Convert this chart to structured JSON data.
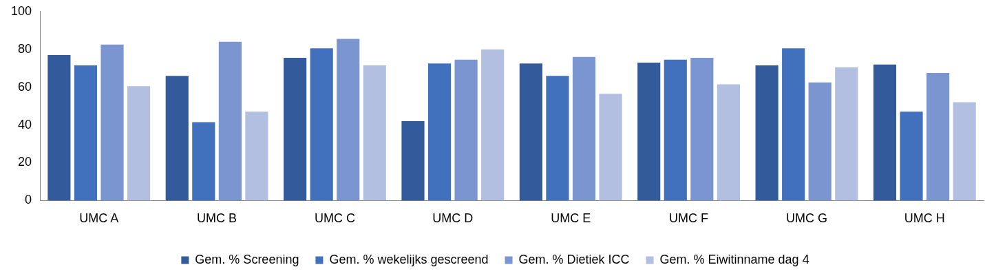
{
  "chart_data": {
    "type": "bar",
    "categories": [
      "UMC A",
      "UMC B",
      "UMC C",
      "UMC D",
      "UMC E",
      "UMC F",
      "UMC G",
      "UMC H"
    ],
    "series": [
      {
        "name": "Gem. % Screening",
        "color": "#335a9a",
        "values": [
          77,
          66,
          75.5,
          42,
          72.5,
          73,
          71.5,
          72
        ]
      },
      {
        "name": "Gem. % wekelijks gescreend",
        "color": "#4170bd",
        "values": [
          71.5,
          41.5,
          80.5,
          72.5,
          66,
          74.5,
          80.5,
          47
        ]
      },
      {
        "name": "Gem. % Dietiek ICC",
        "color": "#7b95d0",
        "values": [
          82.5,
          84,
          85.5,
          74.5,
          76,
          75.5,
          62.5,
          67.5
        ]
      },
      {
        "name": "Gem. % Eiwitinname dag 4",
        "color": "#b3bfe0",
        "values": [
          60.5,
          47,
          71.5,
          80,
          56.5,
          61.5,
          70.5,
          52
        ]
      }
    ],
    "ylim": [
      0,
      100
    ],
    "yticks": [
      0,
      20,
      40,
      60,
      80,
      100
    ],
    "grid": false,
    "legend": "bottom"
  }
}
